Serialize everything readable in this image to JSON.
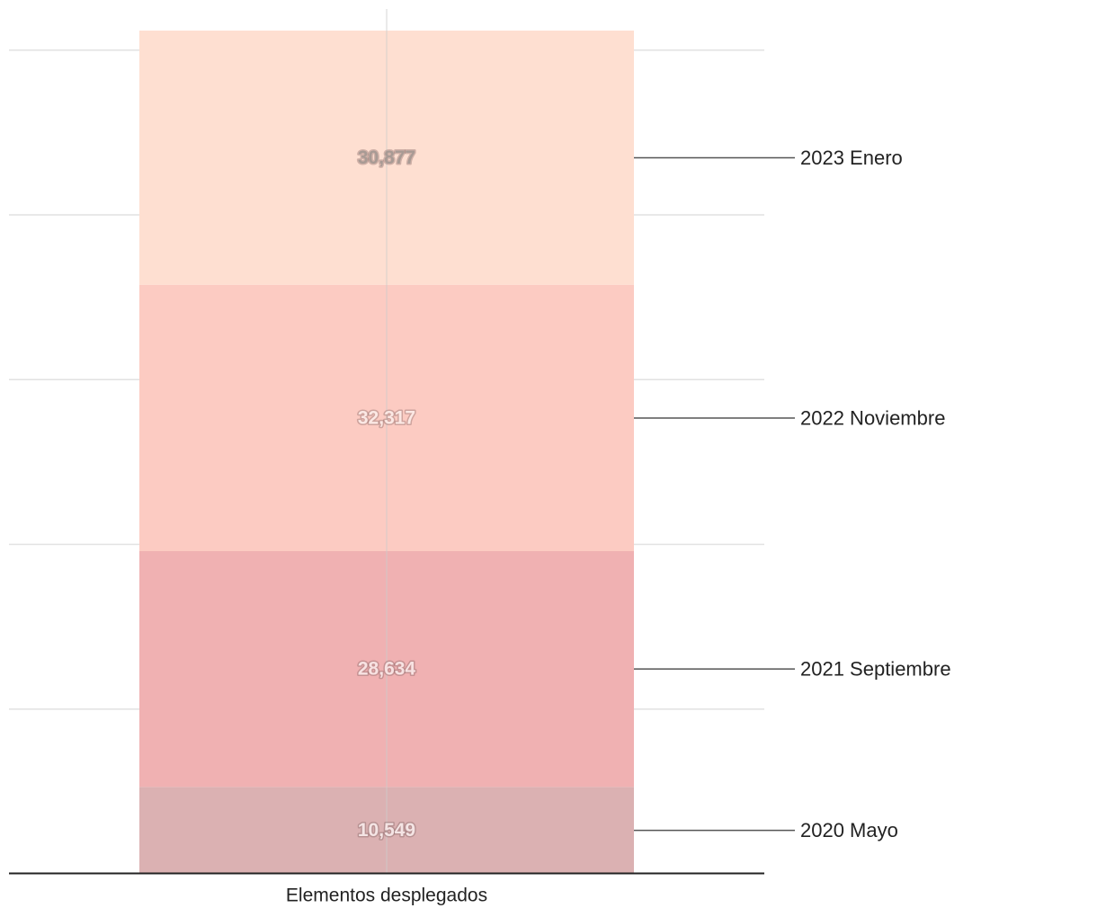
{
  "chart_data": {
    "type": "bar",
    "stacked": true,
    "categories": [
      "Elementos desplegados"
    ],
    "series": [
      {
        "name": "2020 Mayo",
        "values": [
          10549
        ],
        "color": "#dbb1b2",
        "label": "10,549",
        "label_color": "#f4e4e4"
      },
      {
        "name": "2021 Septiembre",
        "values": [
          28634
        ],
        "color": "#f0b1b2",
        "label": "28,634",
        "label_color": "#f7e2e2"
      },
      {
        "name": "2022 Noviembre",
        "values": [
          32317
        ],
        "color": "#fccbc2",
        "label": "32,317",
        "label_color": "#fbe8e4"
      },
      {
        "name": "2023 Enero",
        "values": [
          30877
        ],
        "color": "#fedfd1",
        "label": "30,877",
        "label_color": "#a89a94"
      }
    ],
    "ylim": [
      0,
      105000
    ],
    "grid": true,
    "legend": "right",
    "xlabel": "",
    "ylabel": ""
  }
}
